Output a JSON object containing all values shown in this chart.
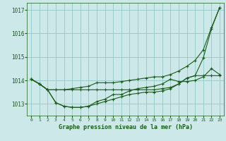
{
  "background_color": "#cce8e8",
  "grid_color": "#99cccc",
  "line_color": "#1a5c1a",
  "title": "Graphe pression niveau de la mer (hPa)",
  "xlim": [
    -0.5,
    23.5
  ],
  "ylim": [
    1012.5,
    1017.3
  ],
  "yticks": [
    1013,
    1014,
    1015,
    1016,
    1017
  ],
  "xticks": [
    0,
    1,
    2,
    3,
    4,
    5,
    6,
    7,
    8,
    9,
    10,
    11,
    12,
    13,
    14,
    15,
    16,
    17,
    18,
    19,
    20,
    21,
    22,
    23
  ],
  "series": [
    [
      1014.05,
      1013.85,
      1013.6,
      1013.05,
      1012.9,
      1012.85,
      1012.85,
      1012.9,
      1013.0,
      1013.1,
      1013.2,
      1013.3,
      1013.4,
      1013.45,
      1013.5,
      1013.5,
      1013.55,
      1013.65,
      1013.85,
      1014.1,
      1014.2,
      1014.95,
      1016.2,
      1017.1
    ],
    [
      1014.05,
      1013.85,
      1013.6,
      1013.6,
      1013.6,
      1013.6,
      1013.6,
      1013.6,
      1013.6,
      1013.6,
      1013.6,
      1013.6,
      1013.6,
      1013.6,
      1013.6,
      1013.6,
      1013.65,
      1013.7,
      1013.85,
      1014.1,
      1014.2,
      1014.2,
      1014.2,
      1014.2
    ],
    [
      1014.05,
      1013.85,
      1013.6,
      1013.6,
      1013.6,
      1013.65,
      1013.7,
      1013.75,
      1013.9,
      1013.9,
      1013.9,
      1013.95,
      1014.0,
      1014.05,
      1014.1,
      1014.15,
      1014.15,
      1014.25,
      1014.4,
      1014.6,
      1014.85,
      1015.3,
      1016.25,
      1017.1
    ],
    [
      1014.05,
      1013.85,
      1013.6,
      1013.05,
      1012.9,
      1012.85,
      1012.85,
      1012.9,
      1013.1,
      1013.2,
      1013.4,
      1013.4,
      1013.55,
      1013.65,
      1013.7,
      1013.75,
      1013.85,
      1014.05,
      1013.95,
      1013.95,
      1014.0,
      1014.15,
      1014.5,
      1014.25
    ]
  ]
}
